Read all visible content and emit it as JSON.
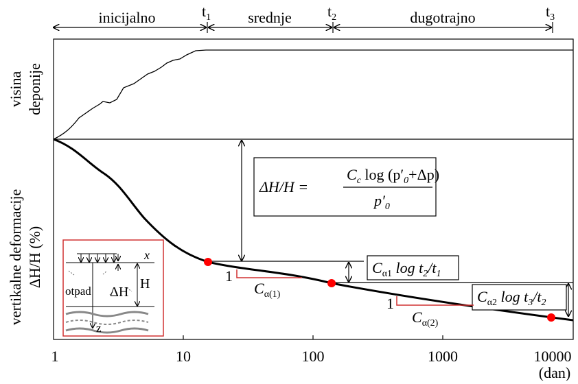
{
  "phases": {
    "initial": "inicijalno",
    "middle": "srednje",
    "long": "dugotrajno"
  },
  "time_marks": [
    {
      "t": "t",
      "sub": "1"
    },
    {
      "t": "t",
      "sub": "2"
    },
    {
      "t": "t",
      "sub": "3"
    }
  ],
  "y_label_top": [
    "visina",
    "deponije"
  ],
  "y_label_bottom": [
    "vertikalne deformacije",
    "ΔH/H (%)"
  ],
  "x_ticks": [
    "1",
    "10",
    "100",
    "1000",
    "10000"
  ],
  "x_unit": "(dan)",
  "formula_main": {
    "lhs": "ΔH/H =",
    "c": "C",
    "c_sub": "c",
    "mid": " log (p′",
    "mid_sub": "0",
    "tail": "+Δp)",
    "den": "p′",
    "den_sub": "0"
  },
  "formula_a1": {
    "c": "C",
    "sub": "α1",
    "rest": " log t",
    "s1": "2",
    "slash": "/t",
    "s2": "1"
  },
  "formula_a2": {
    "c": "C",
    "sub": "α2",
    "rest": " log t",
    "s1": "3",
    "slash": "/t",
    "s2": "2"
  },
  "slopes": [
    {
      "one": "1",
      "c": "C",
      "sub": "α(1)"
    },
    {
      "one": "1",
      "c": "C",
      "sub": "α(2)"
    }
  ],
  "inset": {
    "x": "x",
    "h": "H",
    "dh": "ΔH",
    "waste": "otpad",
    "z": "z"
  }
}
